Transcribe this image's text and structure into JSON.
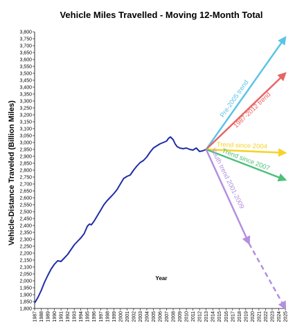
{
  "chart_data": {
    "type": "line",
    "title": "Vehicle Miles Travelled - Moving 12-Month Total",
    "ylabel": "Vehicle-Distance Traveled (Billion Miles)",
    "xlabel": "Year",
    "xlim": [
      1987,
      2025
    ],
    "ylim": [
      1800,
      3800
    ],
    "ytick_step": 50,
    "x_ticks": [
      1987,
      1988,
      1989,
      1990,
      1991,
      1992,
      1993,
      1994,
      1995,
      1996,
      1997,
      1998,
      1999,
      2000,
      2001,
      2002,
      2003,
      2004,
      2005,
      2006,
      2007,
      2008,
      2009,
      2010,
      2011,
      2012,
      2013,
      2014,
      2015,
      2016,
      2017,
      2018,
      2019,
      2020,
      2021,
      2022,
      2023,
      2024,
      2025
    ],
    "grid": false,
    "series": [
      {
        "color": "#1f2ca8",
        "x": [
          1987.0,
          1987.5,
          1988.0,
          1988.5,
          1989.0,
          1989.5,
          1990.0,
          1990.5,
          1991.0,
          1991.5,
          1992.0,
          1992.5,
          1993.0,
          1993.5,
          1994.0,
          1994.5,
          1995.0,
          1995.3,
          1995.6,
          1996.0,
          1996.5,
          1997.0,
          1997.5,
          1998.0,
          1998.5,
          1999.0,
          1999.5,
          2000.0,
          2000.5,
          2001.0,
          2001.5,
          2002.0,
          2002.5,
          2003.0,
          2003.5,
          2004.0,
          2004.5,
          2005.0,
          2005.5,
          2006.0,
          2006.5,
          2007.0,
          2007.3,
          2007.6,
          2008.0,
          2008.3,
          2008.6,
          2009.0,
          2009.5,
          2010.0,
          2010.5,
          2011.0,
          2011.5,
          2012.0,
          2012.5,
          2013.0
        ],
        "y": [
          1840,
          1880,
          1930,
          1990,
          2040,
          2085,
          2120,
          2145,
          2140,
          2165,
          2190,
          2225,
          2260,
          2285,
          2310,
          2340,
          2395,
          2410,
          2405,
          2430,
          2470,
          2510,
          2550,
          2580,
          2605,
          2630,
          2660,
          2700,
          2740,
          2755,
          2765,
          2800,
          2830,
          2855,
          2870,
          2895,
          2930,
          2960,
          2975,
          2990,
          3000,
          3010,
          3030,
          3040,
          3020,
          2990,
          2970,
          2960,
          2955,
          2960,
          2950,
          2945,
          2960,
          2935,
          2940,
          2950
        ]
      }
    ],
    "trends": [
      {
        "label": "Pre-2005 trend",
        "color": "#5cc3e8",
        "from": [
          2013,
          2950
        ],
        "to": [
          2025,
          3760
        ],
        "dashed_from": null
      },
      {
        "label": "1987-2012 trend",
        "color": "#e86464",
        "from": [
          2013,
          2950
        ],
        "to": [
          2025,
          3500
        ],
        "dashed_from": null
      },
      {
        "label": "Trend since 2004",
        "color": "#f5d327",
        "from": [
          2013,
          2950
        ],
        "to": [
          2025,
          2925
        ],
        "dashed_from": null
      },
      {
        "label": "Trend since 2007",
        "color": "#4fbf7a",
        "from": [
          2013,
          2950
        ],
        "to": [
          2025,
          2730
        ],
        "dashed_from": null
      },
      {
        "label": "Youth trend 2001-2009",
        "color": "#b48ee0",
        "from": [
          2013,
          2950
        ],
        "to": [
          2025,
          1800
        ],
        "dashed_from": [
          2019.5,
          2270
        ]
      }
    ]
  }
}
